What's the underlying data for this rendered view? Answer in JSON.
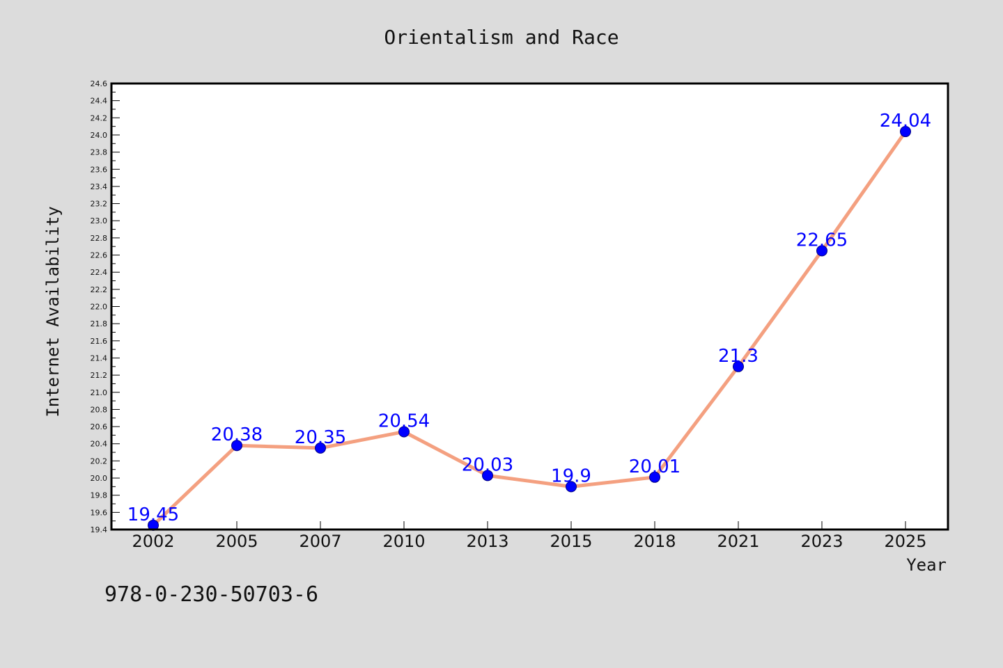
{
  "colors": {
    "background": "#dcdcdc",
    "plot_background": "#ffffff",
    "line": "#f4a080",
    "marker": "#0000ff",
    "data_label": "#0000ff"
  },
  "isbn": "978-0-230-50703-6",
  "chart_data": {
    "type": "line",
    "title": "Orientalism and Race",
    "xlabel": "Year",
    "ylabel": "Internet Availability",
    "categories": [
      "2002",
      "2005",
      "2007",
      "2010",
      "2013",
      "2015",
      "2018",
      "2021",
      "2023",
      "2025"
    ],
    "series": [
      {
        "values": [
          19.45,
          20.38,
          20.35,
          20.54,
          20.03,
          19.9,
          20.01,
          21.3,
          22.65,
          24.04
        ],
        "value_labels": [
          "19.45",
          "20.38",
          "20.35",
          "20.54",
          "20.03",
          "19.9",
          "20.01",
          "21.3",
          "22.65",
          "24.04"
        ]
      }
    ],
    "ylim": [
      19.4,
      24.6
    ],
    "yticks": [
      "19.4",
      "19.6",
      "19.8",
      "20.0",
      "20.2",
      "20.4",
      "20.6",
      "20.8",
      "21.0",
      "21.2",
      "21.4",
      "21.6",
      "21.8",
      "22.0",
      "22.2",
      "22.4",
      "22.6",
      "22.8",
      "23.0",
      "23.2",
      "23.4",
      "23.6",
      "23.8",
      "24.0",
      "24.2",
      "24.4",
      "24.6"
    ],
    "grid": false,
    "legend": "none"
  }
}
